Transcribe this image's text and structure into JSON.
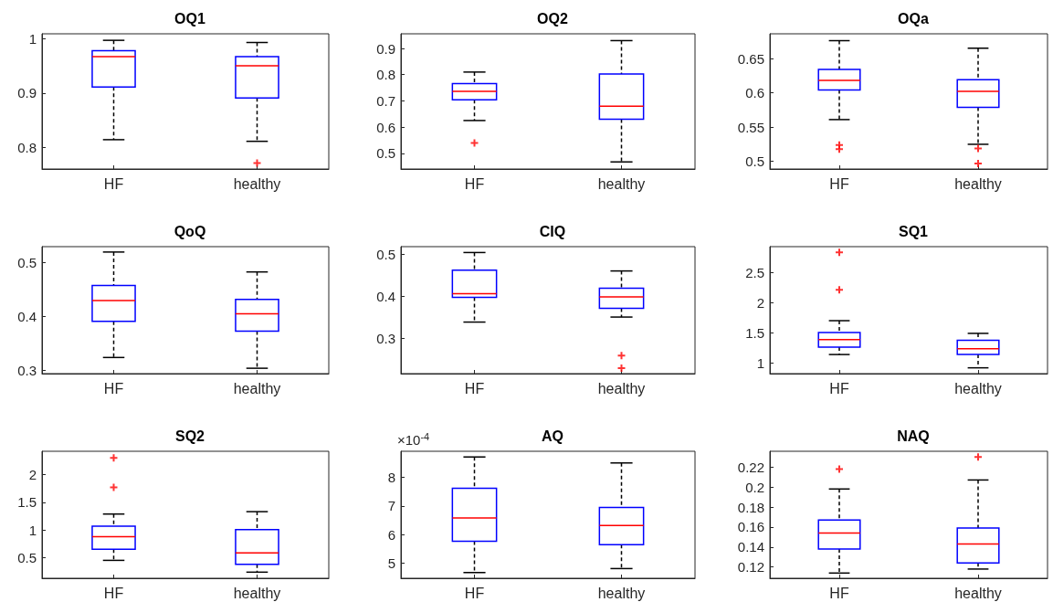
{
  "chart_data": [
    {
      "type": "box",
      "title": "OQ1",
      "categories": [
        "HF",
        "healthy"
      ],
      "ylim": [
        0.76,
        1.009
      ],
      "yticks": [
        0.8,
        0.9,
        1
      ],
      "grid": false,
      "boxes": [
        {
          "low": 0.814,
          "q1": 0.911,
          "median": 0.967,
          "q3": 0.978,
          "high": 0.997
        },
        {
          "low": 0.811,
          "q1": 0.891,
          "median": 0.95,
          "q3": 0.967,
          "high": 0.993,
          "outliers": [
            0.771
          ]
        }
      ]
    },
    {
      "type": "box",
      "title": "OQ2",
      "categories": [
        "HF",
        "healthy"
      ],
      "ylim": [
        0.44,
        0.956
      ],
      "yticks": [
        0.5,
        0.6,
        0.7,
        0.8,
        0.9
      ],
      "grid": false,
      "boxes": [
        {
          "low": 0.625,
          "q1": 0.704,
          "median": 0.736,
          "q3": 0.766,
          "high": 0.81,
          "outliers": [
            0.539
          ]
        },
        {
          "low": 0.467,
          "q1": 0.63,
          "median": 0.68,
          "q3": 0.803,
          "high": 0.93
        }
      ]
    },
    {
      "type": "box",
      "title": "OQa",
      "categories": [
        "HF",
        "healthy"
      ],
      "ylim": [
        0.489,
        0.686
      ],
      "yticks": [
        0.5,
        0.55,
        0.6,
        0.65
      ],
      "grid": false,
      "boxes": [
        {
          "low": 0.561,
          "q1": 0.604,
          "median": 0.618,
          "q3": 0.634,
          "high": 0.676,
          "outliers": [
            0.524,
            0.518
          ]
        },
        {
          "low": 0.525,
          "q1": 0.579,
          "median": 0.602,
          "q3": 0.619,
          "high": 0.665,
          "outliers": [
            0.519,
            0.497
          ]
        }
      ]
    },
    {
      "type": "box",
      "title": "QoQ",
      "categories": [
        "HF",
        "healthy"
      ],
      "ylim": [
        0.294,
        0.53
      ],
      "yticks": [
        0.3,
        0.4,
        0.5
      ],
      "grid": false,
      "boxes": [
        {
          "low": 0.324,
          "q1": 0.391,
          "median": 0.43,
          "q3": 0.458,
          "high": 0.52
        },
        {
          "low": 0.304,
          "q1": 0.373,
          "median": 0.405,
          "q3": 0.432,
          "high": 0.483
        }
      ]
    },
    {
      "type": "box",
      "title": "CIQ",
      "categories": [
        "HF",
        "healthy"
      ],
      "ylim": [
        0.216,
        0.519
      ],
      "yticks": [
        0.3,
        0.4,
        0.5
      ],
      "grid": false,
      "boxes": [
        {
          "low": 0.339,
          "q1": 0.398,
          "median": 0.407,
          "q3": 0.463,
          "high": 0.505
        },
        {
          "low": 0.351,
          "q1": 0.372,
          "median": 0.399,
          "q3": 0.42,
          "high": 0.461,
          "outliers": [
            0.259,
            0.229
          ]
        }
      ]
    },
    {
      "type": "box",
      "title": "SQ1",
      "categories": [
        "HF",
        "healthy"
      ],
      "ylim": [
        0.824,
        2.925
      ],
      "yticks": [
        1,
        1.5,
        2,
        2.5
      ],
      "grid": false,
      "boxes": [
        {
          "low": 1.14,
          "q1": 1.262,
          "median": 1.387,
          "q3": 1.506,
          "high": 1.7,
          "outliers": [
            2.83,
            2.21
          ]
        },
        {
          "low": 0.92,
          "q1": 1.14,
          "median": 1.235,
          "q3": 1.376,
          "high": 1.49
        }
      ]
    },
    {
      "type": "box",
      "title": "SQ2",
      "categories": [
        "HF",
        "healthy"
      ],
      "ylim": [
        0.128,
        2.42
      ],
      "yticks": [
        0.5,
        1,
        1.5,
        2
      ],
      "grid": false,
      "boxes": [
        {
          "low": 0.451,
          "q1": 0.652,
          "median": 0.878,
          "q3": 1.067,
          "high": 1.287,
          "outliers": [
            2.3,
            1.77
          ]
        },
        {
          "low": 0.238,
          "q1": 0.378,
          "median": 0.585,
          "q3": 1.006,
          "high": 1.33
        }
      ]
    },
    {
      "type": "box",
      "title": "AQ",
      "categories": [
        "HF",
        "healthy"
      ],
      "ylim": [
        4.46,
        8.92
      ],
      "yticks": [
        5,
        6,
        7,
        8
      ],
      "grid": false,
      "annotations": [
        "×10$^{-4}$"
      ],
      "boxes": [
        {
          "low": 4.66,
          "q1": 5.76,
          "median": 6.58,
          "q3": 7.62,
          "high": 8.72
        },
        {
          "low": 4.8,
          "q1": 5.64,
          "median": 6.31,
          "q3": 6.95,
          "high": 8.51
        }
      ]
    },
    {
      "type": "box",
      "title": "NAQ",
      "categories": [
        "HF",
        "healthy"
      ],
      "ylim": [
        0.1088,
        0.2357
      ],
      "yticks": [
        0.12,
        0.14,
        0.16,
        0.18,
        0.2,
        0.22
      ],
      "grid": false,
      "boxes": [
        {
          "low": 0.114,
          "q1": 0.138,
          "median": 0.154,
          "q3": 0.167,
          "high": 0.198,
          "outliers": [
            0.218
          ]
        },
        {
          "low": 0.118,
          "q1": 0.124,
          "median": 0.143,
          "q3": 0.159,
          "high": 0.207,
          "outliers": [
            0.23
          ]
        }
      ]
    }
  ]
}
